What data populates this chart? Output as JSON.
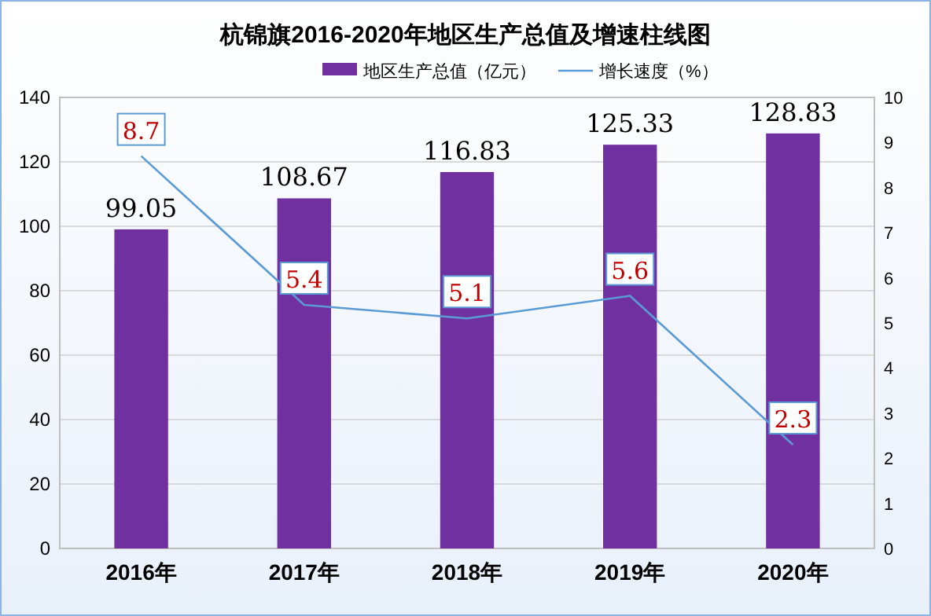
{
  "chart_data": {
    "type": "bar",
    "title": "杭锦旗2016-2020年地区生产总值及增速柱线图",
    "categories": [
      "2016年",
      "2017年",
      "2018年",
      "2019年",
      "2020年"
    ],
    "series": [
      {
        "name": "地区生产总值（亿元）",
        "color": "#7030a0",
        "values": [
          99.05,
          108.67,
          116.83,
          125.33,
          128.83
        ]
      },
      {
        "name": "增长速度（%）",
        "type": "line",
        "axis": "y2",
        "color": "#5b9bd5",
        "values": [
          8.7,
          5.4,
          5.1,
          5.6,
          2.3
        ]
      }
    ],
    "ylim": [
      0,
      140
    ],
    "yticks": [
      0,
      20,
      40,
      60,
      80,
      100,
      120,
      140
    ],
    "y2lim": [
      0,
      10
    ],
    "y2ticks": [
      0,
      1,
      2,
      3,
      4,
      5,
      6,
      7,
      8,
      9,
      10
    ],
    "grid": "y",
    "legend": "top",
    "marker": "none",
    "data_labels": true
  }
}
